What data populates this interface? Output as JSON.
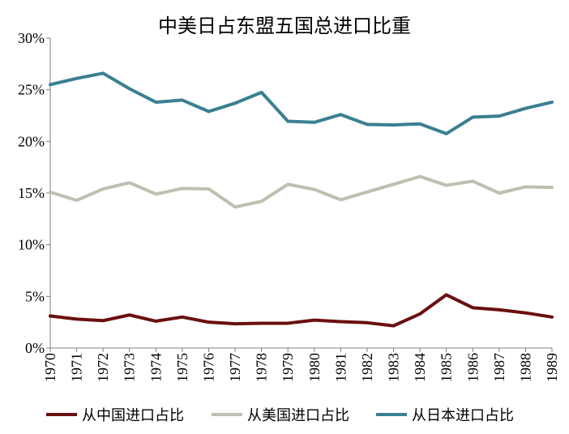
{
  "chart_data": {
    "type": "line",
    "title": "中美日占东盟五国总进口比重",
    "xlabel": "",
    "ylabel": "",
    "x": [
      "1970",
      "1971",
      "1972",
      "1973",
      "1974",
      "1975",
      "1976",
      "1977",
      "1978",
      "1979",
      "1980",
      "1981",
      "1982",
      "1983",
      "1984",
      "1985",
      "1986",
      "1987",
      "1988",
      "1989"
    ],
    "ylim": [
      0,
      30
    ],
    "yticks": [
      0,
      5,
      10,
      15,
      20,
      25,
      30
    ],
    "ytick_labels": [
      "0%",
      "5%",
      "10%",
      "15%",
      "20%",
      "25%",
      "30%"
    ],
    "grid": false,
    "legend_position": "bottom",
    "series": [
      {
        "name": "从中国进口占比",
        "color": "#6b0f0f",
        "values": [
          3.1,
          2.8,
          2.65,
          3.2,
          2.6,
          3.0,
          2.5,
          2.35,
          2.4,
          2.4,
          2.7,
          2.55,
          2.45,
          2.15,
          3.3,
          5.15,
          3.9,
          3.7,
          3.4,
          3.0
        ]
      },
      {
        "name": "从美国进口占比",
        "color": "#bfbfb0",
        "values": [
          15.1,
          14.3,
          15.4,
          16.0,
          14.9,
          15.45,
          15.4,
          13.65,
          14.2,
          15.85,
          15.35,
          14.35,
          15.1,
          15.85,
          16.6,
          15.75,
          16.15,
          15.0,
          15.6,
          15.55
        ]
      },
      {
        "name": "从日本进口占比",
        "color": "#3a7f92",
        "values": [
          25.5,
          26.1,
          26.6,
          25.1,
          23.8,
          24.0,
          22.9,
          23.7,
          24.75,
          21.95,
          21.85,
          22.6,
          21.65,
          21.6,
          21.7,
          20.75,
          22.35,
          22.45,
          23.2,
          23.8
        ]
      }
    ]
  }
}
